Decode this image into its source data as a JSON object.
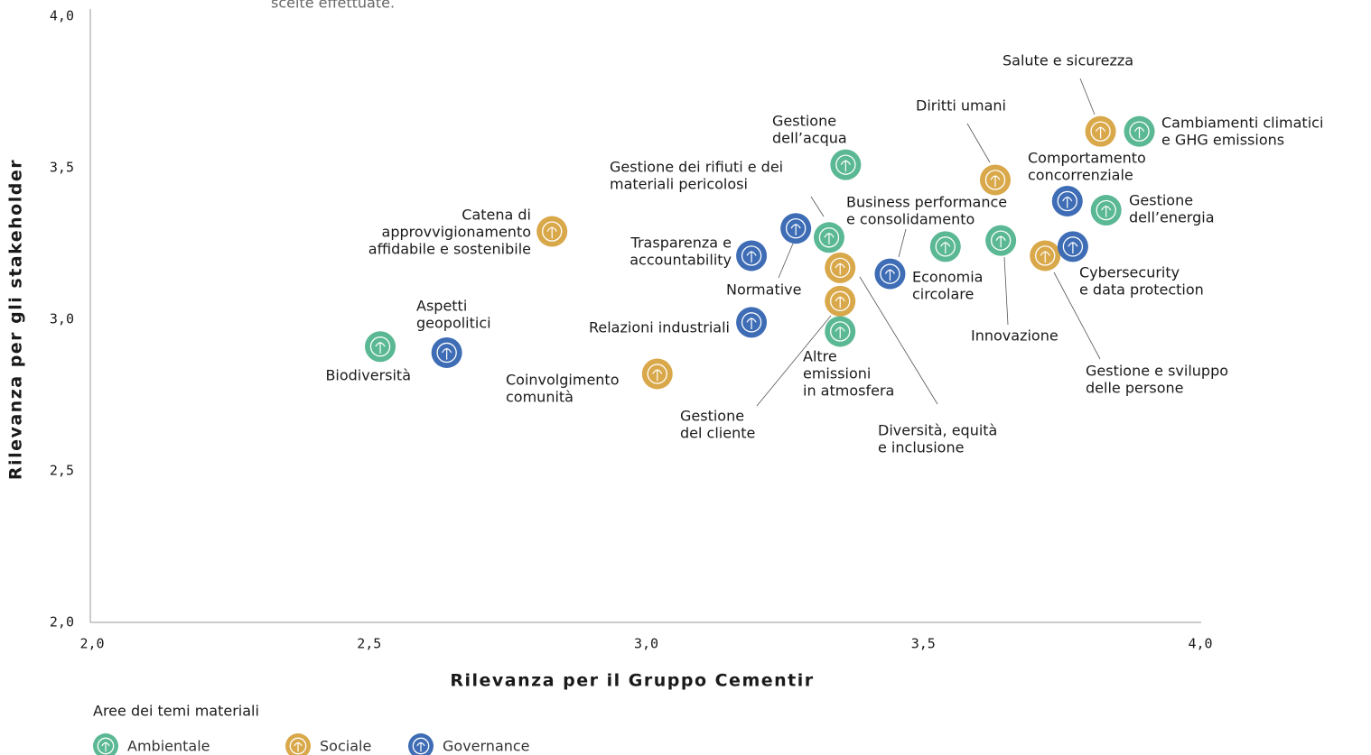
{
  "chart_data": {
    "type": "scatter",
    "caption": "scelte effettuate.",
    "xlabel": "Rilevanza per il Gruppo Cementir",
    "ylabel": "Rilevanza per gli stakeholder",
    "legend_title": "Aree dei temi materiali",
    "xlim": [
      2,
      4
    ],
    "ylim": [
      2,
      4
    ],
    "xticks": [
      {
        "value": 2,
        "label": "2,0"
      },
      {
        "value": 2.5,
        "label": "2,5"
      },
      {
        "value": 3,
        "label": "3,0"
      },
      {
        "value": 3.5,
        "label": "3,5"
      },
      {
        "value": 4,
        "label": "4,0"
      }
    ],
    "yticks": [
      {
        "value": 2,
        "label": "2,0"
      },
      {
        "value": 2.5,
        "label": "2,5"
      },
      {
        "value": 3,
        "label": "3,0"
      },
      {
        "value": 3.5,
        "label": "3,5"
      },
      {
        "value": 4,
        "label": "4,0"
      }
    ],
    "series": [
      {
        "name": "Ambientale",
        "color": "#5bb894",
        "x": [
          2.52,
          3.33,
          3.36,
          3.35,
          3.54,
          3.64,
          3.83,
          3.89
        ],
        "values": [
          2.91,
          3.27,
          3.51,
          2.96,
          3.24,
          3.26,
          3.36,
          3.62
        ],
        "labels": [
          [
            "Biodiversità"
          ],
          [
            "Gestione dei rifiuti e dei",
            "materiali pericolosi"
          ],
          [
            "Gestione",
            "dell’acqua"
          ],
          [
            "Altre",
            "emissioni",
            "in atmosfera"
          ],
          [
            "Economia",
            "circolare"
          ],
          [
            "Innovazione"
          ],
          [
            "Gestione",
            "dell’energia"
          ],
          [
            "Cambiamenti climatici",
            "e GHG emissions"
          ]
        ]
      },
      {
        "name": "Sociale",
        "color": "#d9a84a",
        "x": [
          2.83,
          3.02,
          3.35,
          3.35,
          3.63,
          3.72,
          3.82
        ],
        "values": [
          3.29,
          2.82,
          3.17,
          3.06,
          3.46,
          3.21,
          3.62
        ],
        "labels": [
          [
            "Catena di",
            "approvvigionamento",
            "affidabile e sostenibile"
          ],
          [
            "Coinvolgimento",
            "comunità"
          ],
          [
            "Diversità, equità",
            "e inclusione"
          ],
          [
            "Gestione",
            "del cliente"
          ],
          [
            "Diritti umani"
          ],
          [
            "Gestione e sviluppo",
            "delle persone"
          ],
          [
            "Salute e sicurezza"
          ]
        ]
      },
      {
        "name": "Governance",
        "color": "#3e6db5",
        "x": [
          2.64,
          3.19,
          3.19,
          3.27,
          3.44,
          3.76,
          3.77
        ],
        "values": [
          2.89,
          2.99,
          3.21,
          3.3,
          3.15,
          3.39,
          3.24
        ],
        "labels": [
          [
            "Aspetti",
            "geopolitici"
          ],
          [
            "Relazioni industriali"
          ],
          [
            "Trasparenza e",
            "accountability"
          ],
          [
            "Normative"
          ],
          [
            "Business performance",
            "e consolidamento"
          ],
          [
            "Comportamento",
            "concorrenziale"
          ],
          [
            "Cybersecurity",
            "e data protection"
          ]
        ]
      }
    ]
  }
}
